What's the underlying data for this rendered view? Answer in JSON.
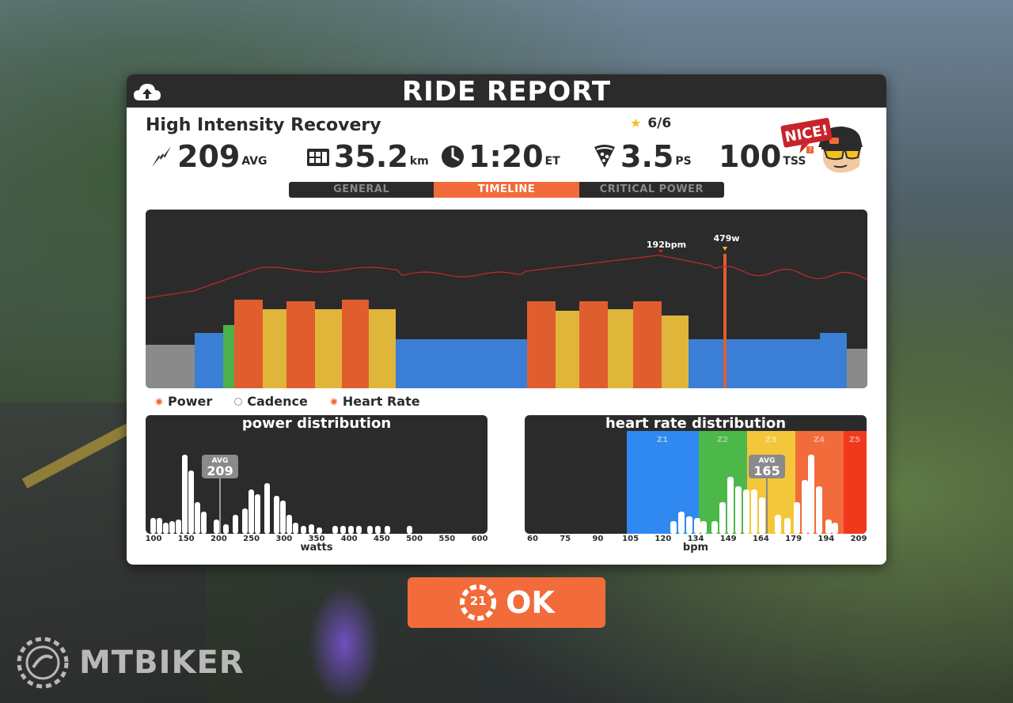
{
  "report": {
    "title": "RIDE REPORT",
    "workout_name": "High Intensity Recovery",
    "stars": "6/6",
    "stats": [
      {
        "icon": "power-bolt-icon",
        "value": "209",
        "unit": "AVG"
      },
      {
        "icon": "odometer-icon",
        "value": "35.2",
        "unit": "km"
      },
      {
        "icon": "clock-icon",
        "value": "1:20",
        "unit": "ET"
      },
      {
        "icon": "pizza-slice-icon",
        "value": "3.5",
        "unit": "PS"
      },
      {
        "icon": "tss-icon",
        "value": "100",
        "unit": "TSS"
      }
    ],
    "tss_hint": "?",
    "badge_text": "NICE!",
    "tabs": [
      {
        "label": "GENERAL",
        "active": false
      },
      {
        "label": "TIMELINE",
        "active": true
      },
      {
        "label": "CRITICAL POWER",
        "active": false
      }
    ]
  },
  "timeline": {
    "hr_peak_label": "192bpm",
    "power_peak_label": "479w",
    "legend": [
      {
        "label": "Power",
        "on": true
      },
      {
        "label": "Cadence",
        "on": false
      },
      {
        "label": "Heart Rate",
        "on": true
      }
    ],
    "zone_colors": {
      "gray": "#8a8a8a",
      "blue": "#3a7fd5",
      "green": "#4cb14a",
      "yellow": "#e0b63a",
      "orange": "#e05e2e"
    }
  },
  "power_distribution": {
    "title": "power distribution",
    "avg_label": "AVG",
    "avg_value": "209",
    "ticks": [
      "100",
      "150",
      "200",
      "250",
      "300",
      "350",
      "400",
      "450",
      "500",
      "550",
      "600"
    ],
    "axis_label": "watts"
  },
  "hr_distribution": {
    "title": "heart rate distribution",
    "zones": [
      "Z1",
      "Z2",
      "Z3",
      "Z4",
      "Z5"
    ],
    "zone_colors": [
      "#2f89f0",
      "#4cb84a",
      "#f4c63a",
      "#f26b3a",
      "#f0391c"
    ],
    "avg_label": "AVG",
    "avg_value": "165",
    "ticks": [
      "60",
      "75",
      "90",
      "105",
      "120",
      "134",
      "149",
      "164",
      "179",
      "194",
      "209"
    ],
    "axis_label": "bpm"
  },
  "ok_button": {
    "timer": "21",
    "label": "OK"
  },
  "watermark": {
    "text": "MTBIKER"
  }
}
